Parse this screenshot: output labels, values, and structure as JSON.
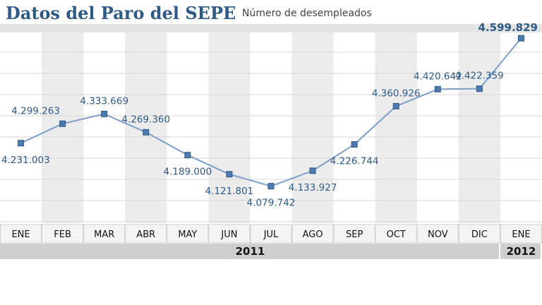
{
  "header": {
    "title": "Datos del Paro del SEPE",
    "subtitle": "Número de desempleados"
  },
  "chart_data": {
    "type": "line",
    "title": "Datos del Paro del SEPE",
    "subtitle": "Número de desempleados",
    "categories": [
      "ENE",
      "FEB",
      "MAR",
      "ABR",
      "MAY",
      "JUN",
      "JUL",
      "AGO",
      "SEP",
      "OCT",
      "NOV",
      "DIC",
      "ENE"
    ],
    "years": [
      {
        "label": "2011",
        "from": 0,
        "to": 11
      },
      {
        "label": "2012",
        "from": 12,
        "to": 12
      }
    ],
    "series": [
      {
        "values": [
          4231003,
          4299263,
          4333669,
          4269360,
          4189000,
          4121801,
          4079742,
          4133927,
          4226744,
          4360926,
          4420642,
          4422359,
          4599829
        ],
        "labels": [
          "4.231.003",
          "4.299.263",
          "4.333.669",
          "4.269.360",
          "4.189.000",
          "4.121.801",
          "4.079.742",
          "4.133.927",
          "4.226.744",
          "4.360.926",
          "4.420.642",
          "4.422.359",
          "4.599.829"
        ]
      }
    ],
    "ylim": [
      3950000,
      4620000
    ],
    "grid": true,
    "colors": {
      "line": "#7d9fc8",
      "marker_fill": "#4f7ab0",
      "marker_stroke": "#2e5a88",
      "labels": "#2e5a88",
      "stripe": "#ececec",
      "grid": "#d6d6d6"
    }
  }
}
